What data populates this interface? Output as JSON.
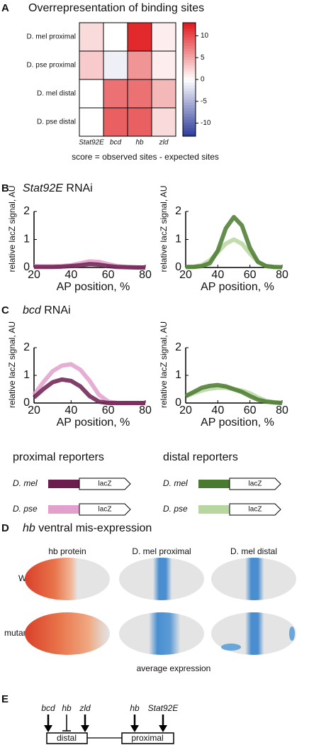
{
  "chart_data": [
    {
      "type": "heatmap",
      "title": "Overrepresentation of binding sites",
      "rows": [
        "D. mel proximal",
        "D. pse proximal",
        "D. mel distal",
        "D. pse distal"
      ],
      "categories": [
        "Stat92E",
        "bcd",
        "hb",
        "zld"
      ],
      "values": [
        [
          2,
          0,
          12,
          1
        ],
        [
          3,
          -1,
          6,
          1
        ],
        [
          0,
          8,
          8,
          4
        ],
        [
          0,
          9,
          9,
          2
        ]
      ],
      "xlabel": "score = observed sites - expected sites",
      "colorbar": {
        "lim": [
          -13,
          13
        ],
        "ticks": [
          -10,
          -5,
          0,
          5,
          10
        ]
      },
      "colors": {
        "low": "#2b3a9a",
        "mid": "#ffffff",
        "high": "#e0181c"
      }
    },
    {
      "type": "line",
      "xlabel": "AP position, %",
      "ylabel": "relative lacZ signal, AU",
      "x": [
        20,
        25,
        30,
        35,
        40,
        45,
        50,
        55,
        60,
        65,
        70,
        75,
        80
      ],
      "xlim": [
        20,
        80
      ],
      "xticks": [
        20,
        40,
        60,
        80
      ],
      "ylim": [
        0,
        2
      ],
      "yticks": [
        0,
        1,
        2
      ],
      "series": [
        {
          "name": "D. mel",
          "color": "#6b1f4f",
          "values": [
            0.02,
            0.02,
            0.02,
            0.03,
            0.05,
            0.08,
            0.12,
            0.1,
            0.05,
            0.02,
            0.01,
            0,
            0
          ]
        },
        {
          "name": "D. pse",
          "color": "#e3a0cc",
          "values": [
            0.05,
            0.04,
            0.04,
            0.05,
            0.08,
            0.15,
            0.22,
            0.2,
            0.12,
            0.05,
            0.02,
            0.01,
            0
          ]
        }
      ]
    },
    {
      "type": "line",
      "xlabel": "AP position, %",
      "ylabel": "relative lacZ signal, AU",
      "x": [
        20,
        25,
        30,
        35,
        40,
        45,
        50,
        55,
        60,
        65,
        70,
        75,
        80
      ],
      "xlim": [
        20,
        80
      ],
      "xticks": [
        20,
        40,
        60,
        80
      ],
      "ylim": [
        0,
        2
      ],
      "yticks": [
        0,
        1,
        2
      ],
      "series": [
        {
          "name": "D. mel",
          "color": "#4a7a2f",
          "values": [
            0.02,
            0.02,
            0.05,
            0.15,
            0.6,
            1.4,
            1.8,
            1.5,
            0.7,
            0.2,
            0.05,
            0.02,
            0.01
          ]
        },
        {
          "name": "D. pse",
          "color": "#b8d6a0",
          "values": [
            0.02,
            0.03,
            0.08,
            0.25,
            0.55,
            0.85,
            1.0,
            0.85,
            0.5,
            0.2,
            0.05,
            0.02,
            0.01
          ]
        }
      ]
    },
    {
      "type": "line",
      "xlabel": "AP position, %",
      "ylabel": "relative lacZ signal, AU",
      "x": [
        20,
        25,
        30,
        35,
        40,
        45,
        50,
        55,
        60,
        65,
        70,
        75,
        80
      ],
      "xlim": [
        20,
        80
      ],
      "xticks": [
        20,
        40,
        60,
        80
      ],
      "ylim": [
        0,
        2
      ],
      "yticks": [
        0,
        1,
        2
      ],
      "series": [
        {
          "name": "D. mel",
          "color": "#6b1f4f",
          "values": [
            0.2,
            0.5,
            0.75,
            0.85,
            0.8,
            0.6,
            0.25,
            0.05,
            0,
            0,
            0,
            0,
            0
          ]
        },
        {
          "name": "D. pse",
          "color": "#e3a0cc",
          "values": [
            0.3,
            0.75,
            1.15,
            1.35,
            1.4,
            1.2,
            0.8,
            0.3,
            0.05,
            0,
            0,
            0,
            0
          ]
        }
      ]
    },
    {
      "type": "line",
      "xlabel": "AP position, %",
      "ylabel": "relative lacZ signal, AU",
      "x": [
        20,
        25,
        30,
        35,
        40,
        45,
        50,
        55,
        60,
        65,
        70,
        75,
        80
      ],
      "xlim": [
        20,
        80
      ],
      "xticks": [
        20,
        40,
        60,
        80
      ],
      "ylim": [
        0,
        2
      ],
      "yticks": [
        0,
        1,
        2
      ],
      "series": [
        {
          "name": "D. mel",
          "color": "#4a7a2f",
          "values": [
            0.25,
            0.4,
            0.55,
            0.62,
            0.65,
            0.6,
            0.5,
            0.4,
            0.25,
            0.12,
            0.05,
            0.02,
            0
          ]
        },
        {
          "name": "D. pse",
          "color": "#b8d6a0",
          "values": [
            0.25,
            0.35,
            0.45,
            0.52,
            0.55,
            0.55,
            0.5,
            0.45,
            0.35,
            0.2,
            0.08,
            0.03,
            0
          ]
        }
      ]
    }
  ],
  "panel_a": {
    "letter": "A"
  },
  "panel_b": {
    "letter": "B",
    "gene": "Stat92E",
    "rest": " RNAi"
  },
  "panel_c": {
    "letter": "C",
    "gene": "bcd",
    "rest": " RNAi"
  },
  "reporters": {
    "proximal": "proximal reporters",
    "distal": "distal reporters",
    "box": "lacZ"
  },
  "panel_d": {
    "letter": "D",
    "gene": "hb",
    "rest": " ventral mis-expression",
    "columns": [
      "hb protein",
      "D. mel proximal",
      "D. mel distal"
    ],
    "rows": [
      "WT",
      "mutant"
    ],
    "caption": "average expression"
  },
  "panel_e": {
    "letter": "E",
    "distal_inputs": [
      "bcd",
      "hb",
      "zld"
    ],
    "proximal_inputs": [
      "hb",
      "Stat92E"
    ],
    "distal": "distal",
    "proximal": "proximal"
  }
}
